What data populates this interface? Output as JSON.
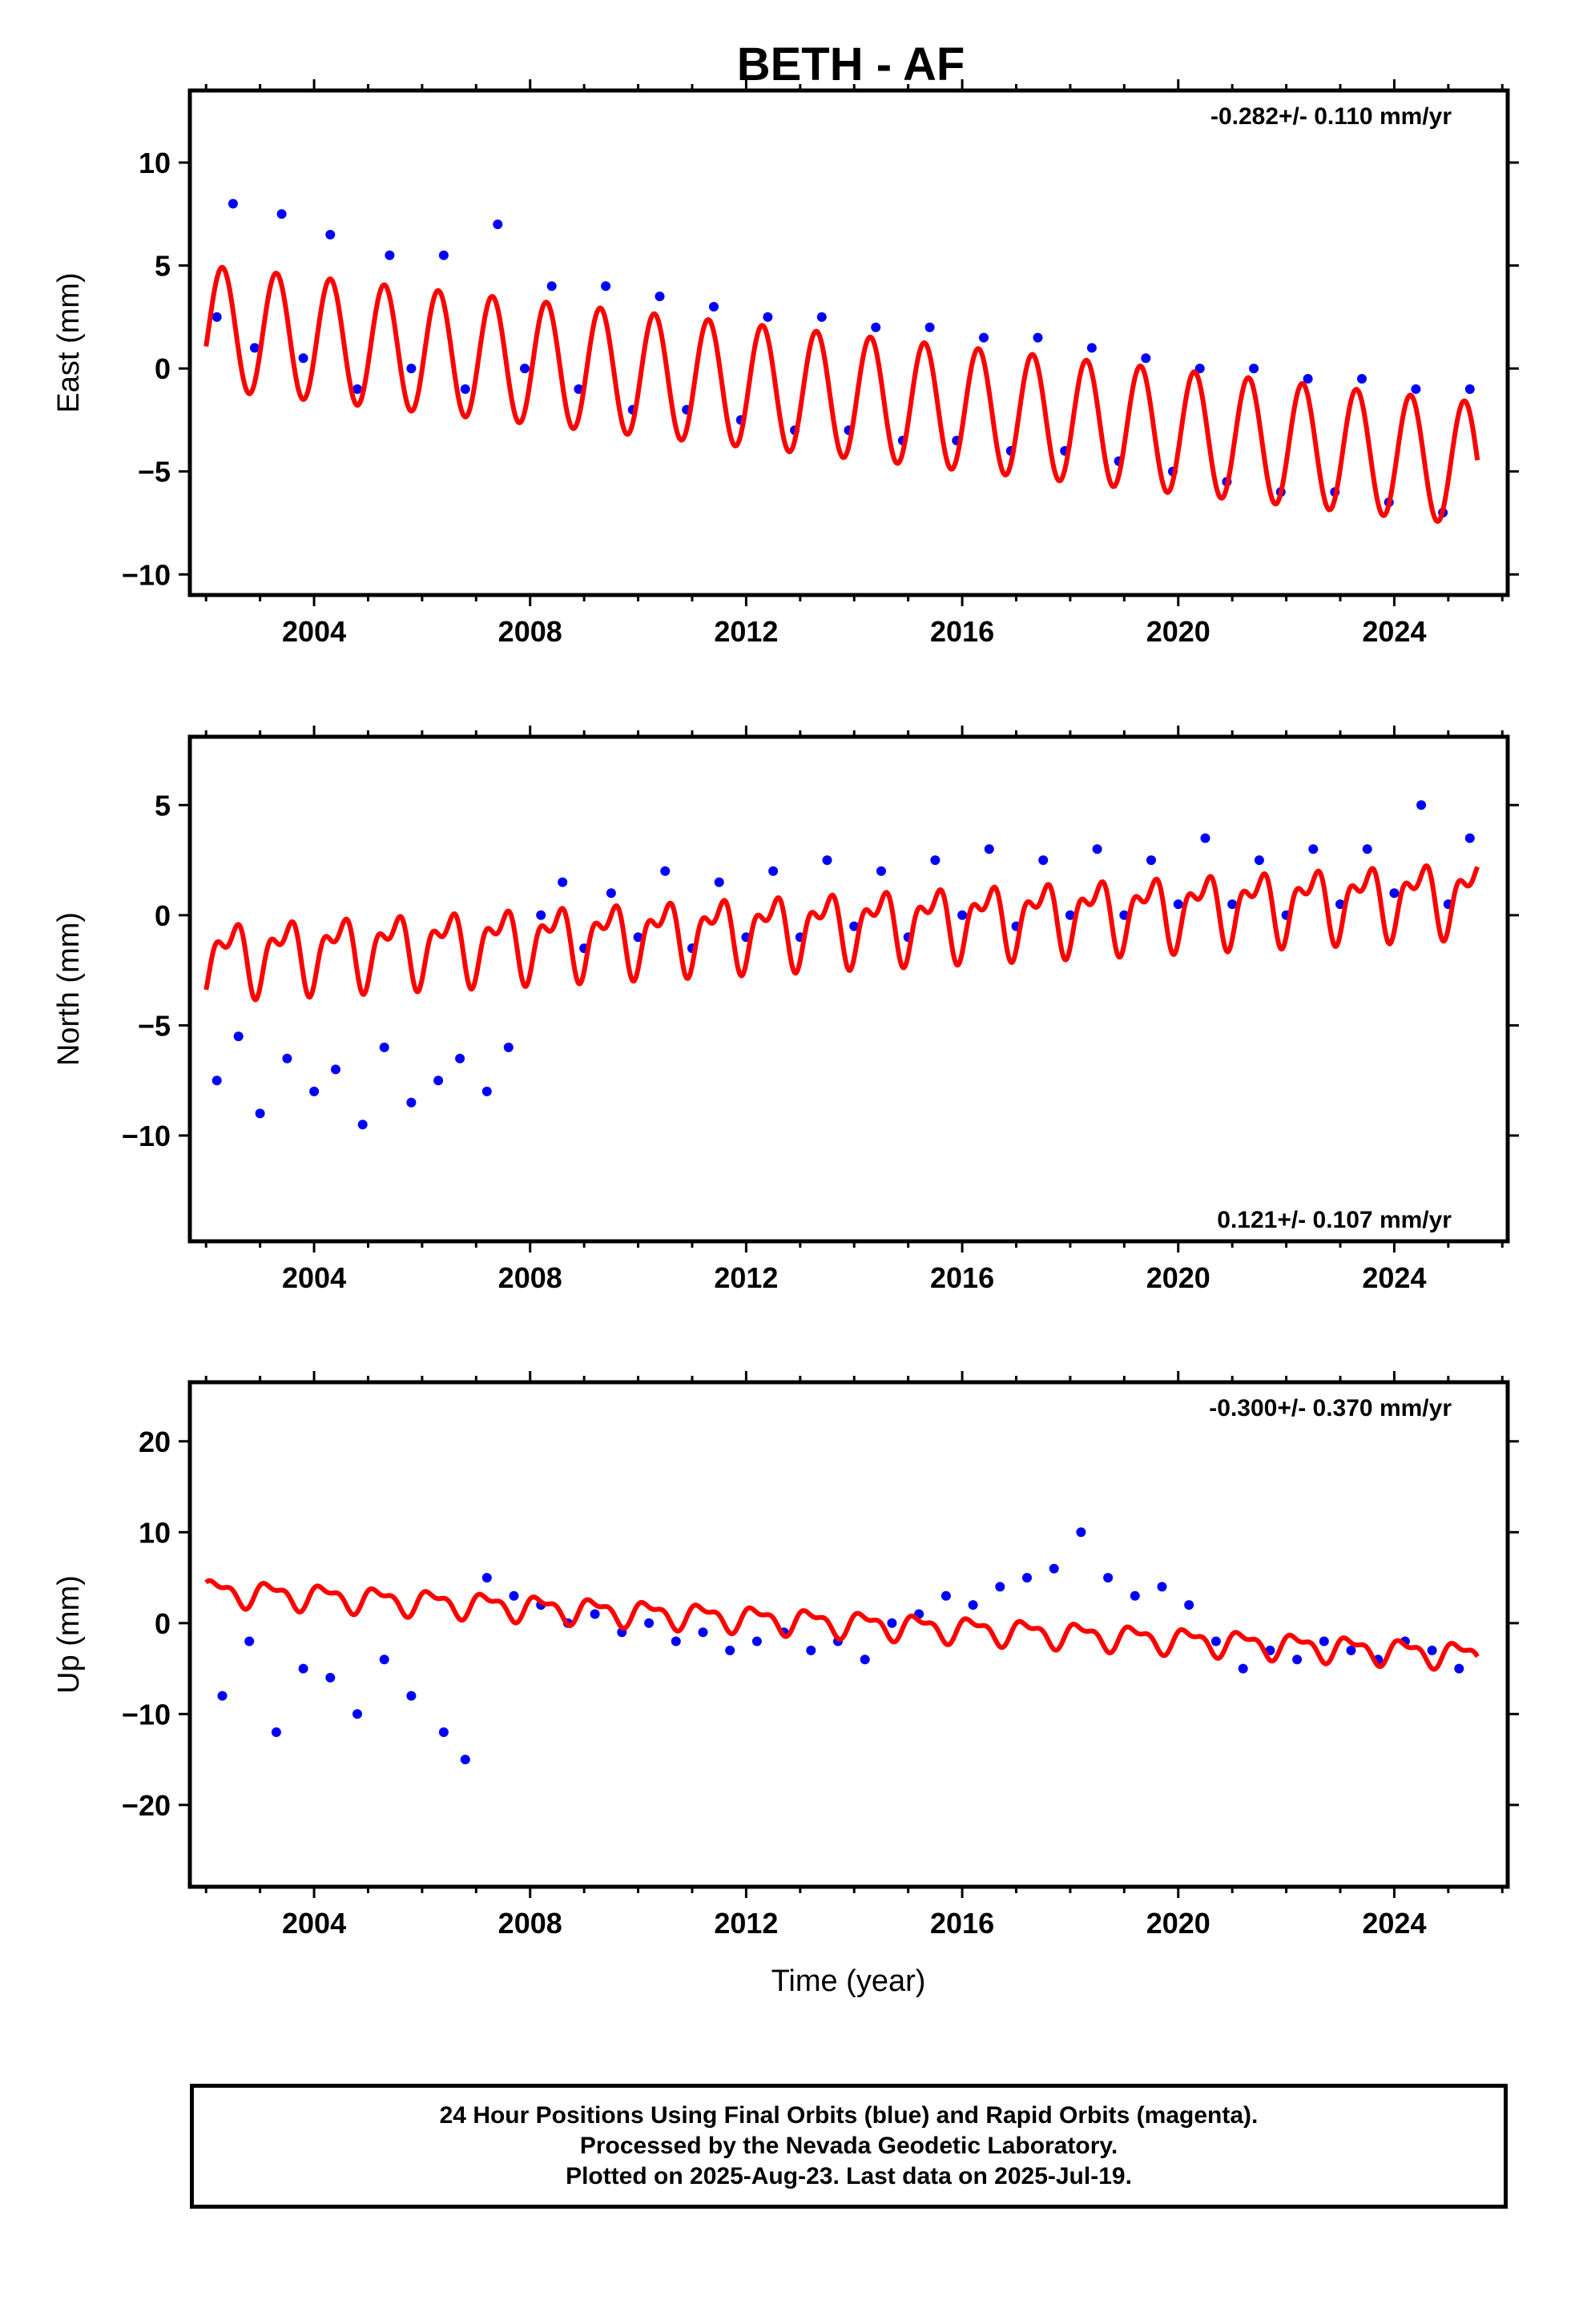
{
  "title": "BETH - AF",
  "colors": {
    "data": "#0000ff",
    "model": "#ff0000",
    "axis": "#000000"
  },
  "time_axis_label": "Time (year)",
  "footer": {
    "line1": "24 Hour Positions Using Final Orbits (blue) and Rapid Orbits (magenta).",
    "line2": "Processed by the Nevada Geodetic Laboratory.",
    "line3": "Plotted on 2025-Aug-23. Last data on 2025-Jul-19."
  },
  "chart_data": [
    {
      "type": "scatter",
      "ylabel": "East (mm)",
      "rate_text": "-0.282+/- 0.110 mm/yr",
      "xlim": [
        2001.7,
        2026.1
      ],
      "ylim": [
        -11,
        13.5
      ],
      "xticks": [
        2004,
        2008,
        2012,
        2016,
        2020,
        2024
      ],
      "yticks": [
        -10,
        -5,
        0,
        5,
        10
      ],
      "series": [
        {
          "values": [
            [
              2002.2,
              2.5
            ],
            [
              2002.5,
              8.0
            ],
            [
              2002.9,
              1.0
            ],
            [
              2003.4,
              7.5
            ],
            [
              2003.8,
              0.5
            ],
            [
              2004.3,
              6.5
            ],
            [
              2004.8,
              -1.0
            ],
            [
              2005.4,
              5.5
            ],
            [
              2005.8,
              0.0
            ],
            [
              2006.4,
              5.5
            ],
            [
              2006.8,
              -1.0
            ],
            [
              2007.4,
              7.0
            ],
            [
              2007.9,
              0.0
            ],
            [
              2008.4,
              4.0
            ],
            [
              2008.9,
              -1.0
            ],
            [
              2009.4,
              4.0
            ],
            [
              2009.9,
              -2.0
            ],
            [
              2010.4,
              3.5
            ],
            [
              2010.9,
              -2.0
            ],
            [
              2011.4,
              3.0
            ],
            [
              2011.9,
              -2.5
            ],
            [
              2012.4,
              2.5
            ],
            [
              2012.9,
              -3.0
            ],
            [
              2013.4,
              2.5
            ],
            [
              2013.9,
              -3.0
            ],
            [
              2014.4,
              2.0
            ],
            [
              2014.9,
              -3.5
            ],
            [
              2015.4,
              2.0
            ],
            [
              2015.9,
              -3.5
            ],
            [
              2016.4,
              1.5
            ],
            [
              2016.9,
              -4.0
            ],
            [
              2017.4,
              1.5
            ],
            [
              2017.9,
              -4.0
            ],
            [
              2018.4,
              1.0
            ],
            [
              2018.9,
              -4.5
            ],
            [
              2019.4,
              0.5
            ],
            [
              2019.9,
              -5.0
            ],
            [
              2020.4,
              0.0
            ],
            [
              2020.9,
              -5.5
            ],
            [
              2021.4,
              0.0
            ],
            [
              2021.9,
              -6.0
            ],
            [
              2022.4,
              -0.5
            ],
            [
              2022.9,
              -6.0
            ],
            [
              2023.4,
              -0.5
            ],
            [
              2023.9,
              -6.5
            ],
            [
              2024.4,
              -1.0
            ],
            [
              2024.9,
              -7.0
            ],
            [
              2025.4,
              -1.0
            ]
          ]
        }
      ],
      "model": {
        "start": 2002.0,
        "end": 2025.55,
        "offset": 2.0,
        "trend": -0.282,
        "amp1": 3.0,
        "phase1": 0.3,
        "amp2": 0.0,
        "phase2": 0.0
      }
    },
    {
      "type": "scatter",
      "ylabel": "North (mm)",
      "rate_text": "0.121+/- 0.107 mm/yr",
      "xlim": [
        2001.7,
        2026.1
      ],
      "ylim": [
        -14.8,
        8.1
      ],
      "xticks": [
        2004,
        2008,
        2012,
        2016,
        2020,
        2024
      ],
      "yticks": [
        -10,
        -5,
        0,
        5
      ],
      "series": [
        {
          "values": [
            [
              2002.2,
              -7.5
            ],
            [
              2002.6,
              -5.5
            ],
            [
              2003.0,
              -9.0
            ],
            [
              2003.5,
              -6.5
            ],
            [
              2004.0,
              -8.0
            ],
            [
              2004.4,
              -7.0
            ],
            [
              2004.9,
              -9.5
            ],
            [
              2005.3,
              -6.0
            ],
            [
              2005.8,
              -8.5
            ],
            [
              2006.3,
              -7.5
            ],
            [
              2006.7,
              -6.5
            ],
            [
              2007.2,
              -8.0
            ],
            [
              2007.6,
              -6.0
            ],
            [
              2008.2,
              0.0
            ],
            [
              2008.6,
              1.5
            ],
            [
              2009.0,
              -1.5
            ],
            [
              2009.5,
              1.0
            ],
            [
              2010.0,
              -1.0
            ],
            [
              2010.5,
              2.0
            ],
            [
              2011.0,
              -1.5
            ],
            [
              2011.5,
              1.5
            ],
            [
              2012.0,
              -1.0
            ],
            [
              2012.5,
              2.0
            ],
            [
              2013.0,
              -1.0
            ],
            [
              2013.5,
              2.5
            ],
            [
              2014.0,
              -0.5
            ],
            [
              2014.5,
              2.0
            ],
            [
              2015.0,
              -1.0
            ],
            [
              2015.5,
              2.5
            ],
            [
              2016.0,
              0.0
            ],
            [
              2016.5,
              3.0
            ],
            [
              2017.0,
              -0.5
            ],
            [
              2017.5,
              2.5
            ],
            [
              2018.0,
              0.0
            ],
            [
              2018.5,
              3.0
            ],
            [
              2019.0,
              0.0
            ],
            [
              2019.5,
              2.5
            ],
            [
              2020.0,
              0.5
            ],
            [
              2020.5,
              3.5
            ],
            [
              2021.0,
              0.5
            ],
            [
              2021.5,
              2.5
            ],
            [
              2022.0,
              0.0
            ],
            [
              2022.5,
              3.0
            ],
            [
              2023.0,
              0.5
            ],
            [
              2023.5,
              3.0
            ],
            [
              2024.0,
              1.0
            ],
            [
              2024.5,
              5.0
            ],
            [
              2025.0,
              0.5
            ],
            [
              2025.4,
              3.5
            ]
          ]
        }
      ],
      "model": {
        "start": 2002.0,
        "end": 2025.55,
        "offset": -1.9,
        "trend": 0.121,
        "amp1": 1.3,
        "phase1": 0.45,
        "amp2": 0.8,
        "phase2": 0.15
      }
    },
    {
      "type": "scatter",
      "ylabel": "Up (mm)",
      "rate_text": "-0.300+/- 0.370 mm/yr",
      "xlim": [
        2001.7,
        2026.1
      ],
      "ylim": [
        -29,
        26.5
      ],
      "xticks": [
        2004,
        2008,
        2012,
        2016,
        2020,
        2024
      ],
      "yticks": [
        -20,
        -10,
        0,
        10,
        20
      ],
      "series": [
        {
          "values": [
            [
              2002.3,
              -8.0
            ],
            [
              2002.8,
              -2.0
            ],
            [
              2003.3,
              -12.0
            ],
            [
              2003.8,
              -5.0
            ],
            [
              2004.3,
              -6.0
            ],
            [
              2004.8,
              -10.0
            ],
            [
              2005.3,
              -4.0
            ],
            [
              2005.8,
              -8.0
            ],
            [
              2006.4,
              -12.0
            ],
            [
              2006.8,
              -15.0
            ],
            [
              2007.2,
              5.0
            ],
            [
              2007.7,
              3.0
            ],
            [
              2008.2,
              2.0
            ],
            [
              2008.7,
              0.0
            ],
            [
              2009.2,
              1.0
            ],
            [
              2009.7,
              -1.0
            ],
            [
              2010.2,
              0.0
            ],
            [
              2010.7,
              -2.0
            ],
            [
              2011.2,
              -1.0
            ],
            [
              2011.7,
              -3.0
            ],
            [
              2012.2,
              -2.0
            ],
            [
              2012.7,
              -1.0
            ],
            [
              2013.2,
              -3.0
            ],
            [
              2013.7,
              -2.0
            ],
            [
              2014.2,
              -4.0
            ],
            [
              2014.7,
              0.0
            ],
            [
              2015.2,
              1.0
            ],
            [
              2015.7,
              3.0
            ],
            [
              2016.2,
              2.0
            ],
            [
              2016.7,
              4.0
            ],
            [
              2017.2,
              5.0
            ],
            [
              2017.7,
              6.0
            ],
            [
              2018.2,
              10.0
            ],
            [
              2018.7,
              5.0
            ],
            [
              2019.2,
              3.0
            ],
            [
              2019.7,
              4.0
            ],
            [
              2020.2,
              2.0
            ],
            [
              2020.7,
              -2.0
            ],
            [
              2021.2,
              -5.0
            ],
            [
              2021.7,
              -3.0
            ],
            [
              2022.2,
              -4.0
            ],
            [
              2022.7,
              -2.0
            ],
            [
              2023.2,
              -3.0
            ],
            [
              2023.7,
              -4.0
            ],
            [
              2024.2,
              -2.0
            ],
            [
              2024.7,
              -3.0
            ],
            [
              2025.2,
              -5.0
            ]
          ]
        }
      ],
      "model": {
        "start": 2002.0,
        "end": 2025.55,
        "offset": 3.5,
        "trend": -0.3,
        "amp1": 1.2,
        "phase1": 0.2,
        "amp2": 0.6,
        "phase2": 0.0
      }
    }
  ]
}
